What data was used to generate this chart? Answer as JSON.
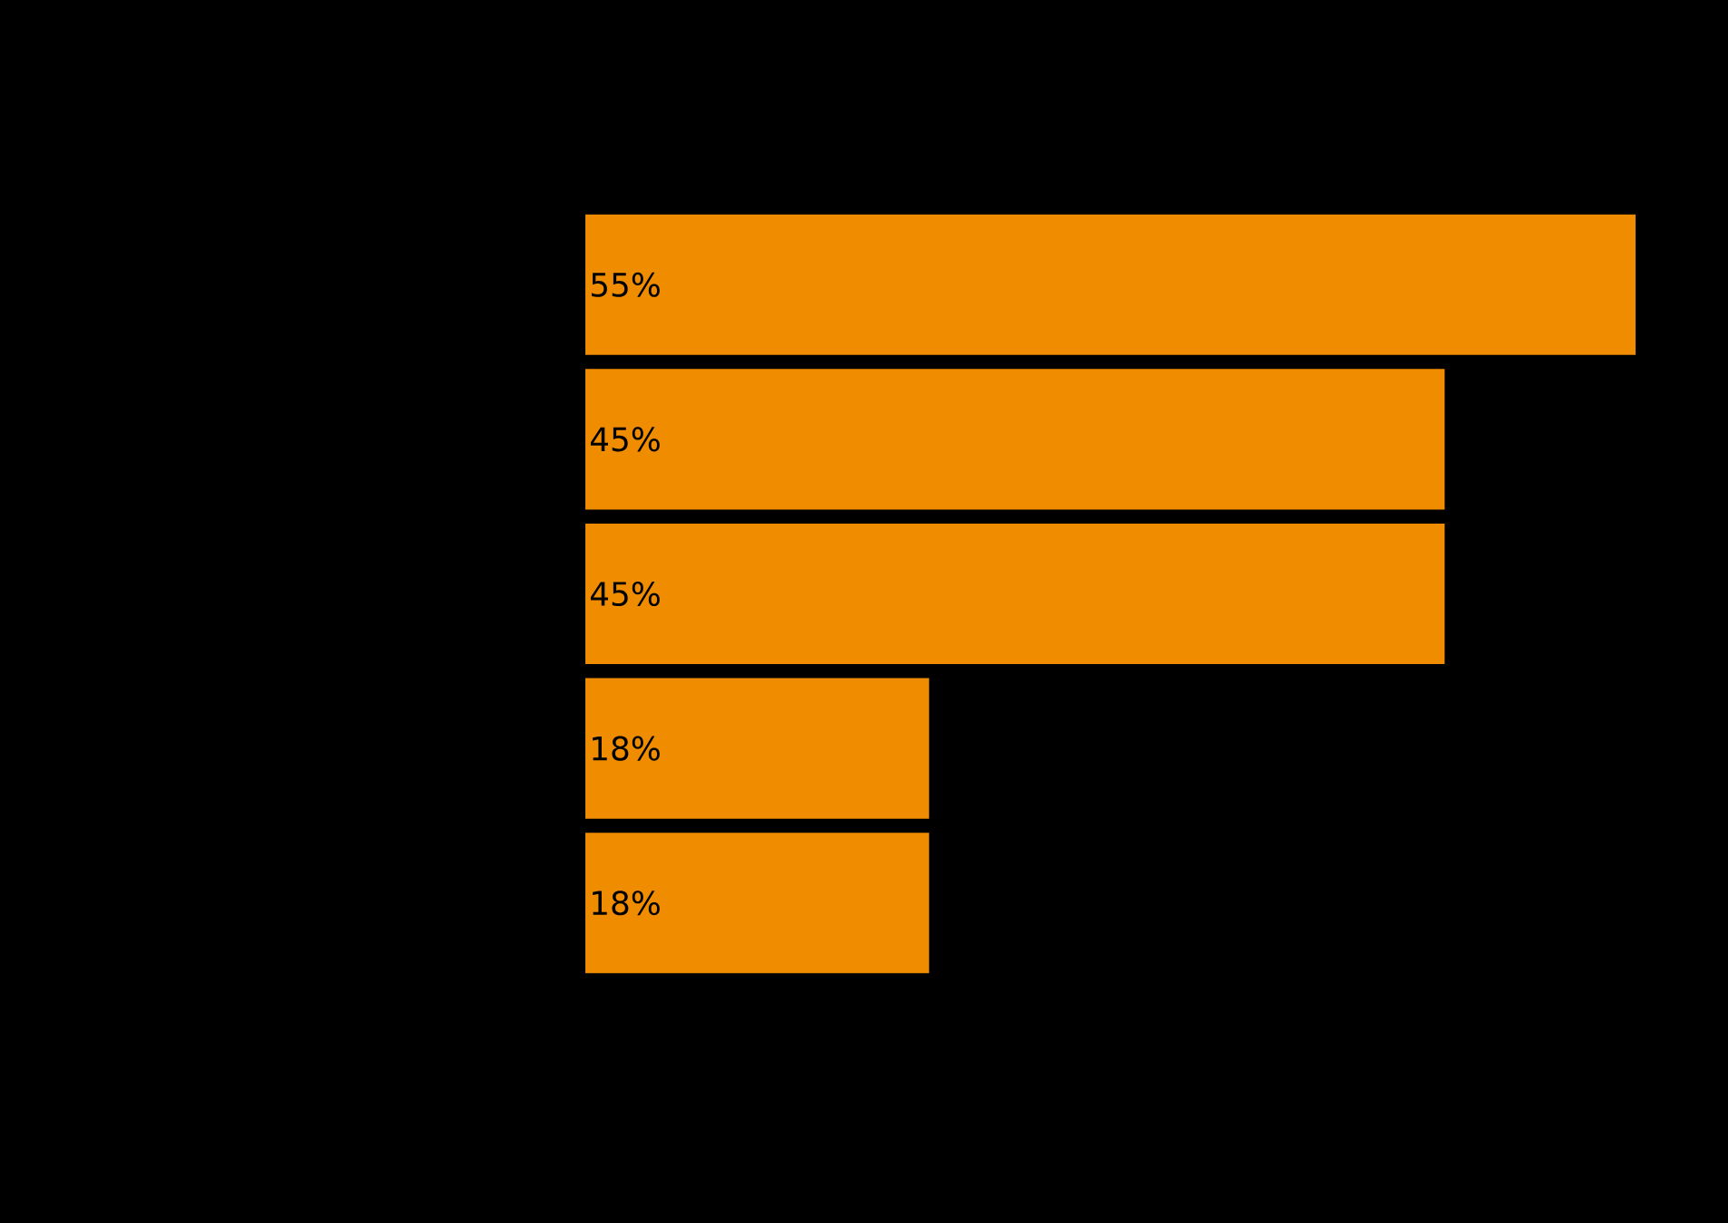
{
  "chart_data": {
    "type": "bar",
    "orientation": "horizontal",
    "categories": [
      null,
      null,
      null,
      null,
      null
    ],
    "values": [
      55,
      45,
      45,
      18,
      18
    ],
    "value_labels": [
      "55%",
      "45%",
      "45%",
      "18%",
      "18%"
    ],
    "color": "#f08c00",
    "xlim": [
      0,
      55
    ],
    "tick_labels": false
  }
}
